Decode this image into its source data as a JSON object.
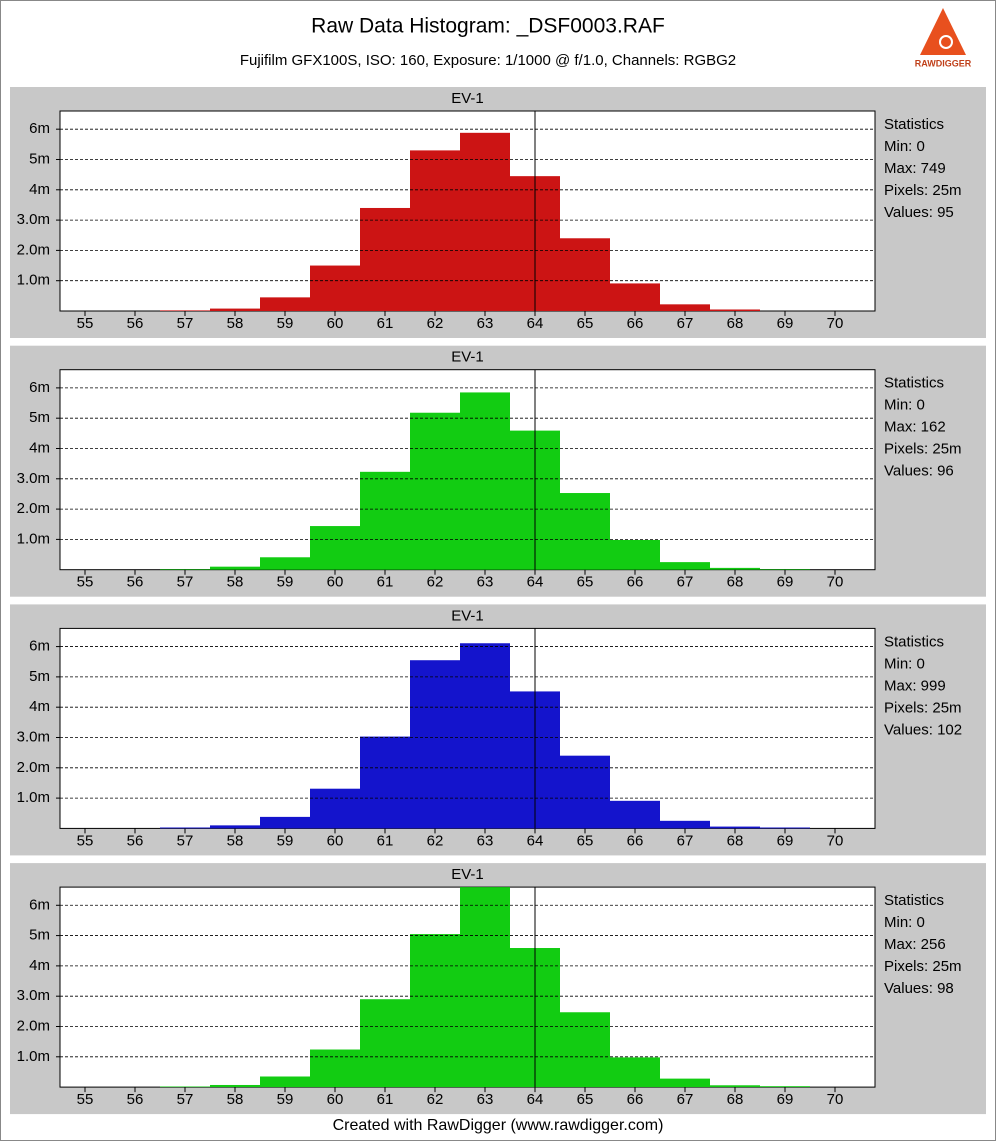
{
  "title": "Raw Data Histogram: _DSF0003.RAF",
  "subtitle": "Fujifilm GFX100S, ISO: 160, Exposure: 1/1000 @ f/1.0, Channels: RGBG2",
  "footer": "Created with RawDigger (www.rawdigger.com)",
  "logo_text": "RAWDIGGER",
  "chart_data": [
    {
      "type": "histogram",
      "title": "EV-1",
      "color": "#cc1414",
      "bins": [
        54.5,
        55.5,
        56.5,
        57.5,
        58.5,
        59.5,
        60.5,
        61.5,
        62.5,
        63.5,
        64.5,
        65.5,
        66.5,
        67.5,
        68.5,
        69.5,
        70.5
      ],
      "values": [
        0,
        0,
        20000,
        80000,
        450000,
        1500000,
        3400000,
        5300000,
        5880000,
        4450000,
        2400000,
        910000,
        220000,
        50000,
        0,
        0
      ],
      "xlim": [
        54.5,
        70.8
      ],
      "xticks": [
        55,
        56,
        57,
        58,
        59,
        60,
        61,
        62,
        63,
        64,
        65,
        66,
        67,
        68,
        69,
        70
      ],
      "ylim": [
        0,
        6600000
      ],
      "yticks": [
        {
          "value": 1000000,
          "label": "1.0m"
        },
        {
          "value": 2000000,
          "label": "2.0m"
        },
        {
          "value": 3000000,
          "label": "3.0m"
        },
        {
          "value": 4000000,
          "label": "4m"
        },
        {
          "value": 5000000,
          "label": "5m"
        },
        {
          "value": 6000000,
          "label": "6m"
        }
      ],
      "grid": true,
      "ref_x": 64,
      "stats": [
        "Statistics",
        "Min: 0",
        "Max: 749",
        "Pixels: 25m",
        "Values: 95"
      ]
    },
    {
      "type": "histogram",
      "title": "EV-1",
      "color": "#12cc12",
      "bins": [
        54.5,
        55.5,
        56.5,
        57.5,
        58.5,
        59.5,
        60.5,
        61.5,
        62.5,
        63.5,
        64.5,
        65.5,
        66.5,
        67.5,
        68.5,
        69.5,
        70.5
      ],
      "values": [
        0,
        0,
        20000,
        100000,
        410000,
        1440000,
        3230000,
        5180000,
        5850000,
        4590000,
        2530000,
        980000,
        250000,
        60000,
        20000,
        0
      ],
      "xlim": [
        54.5,
        70.8
      ],
      "xticks": [
        55,
        56,
        57,
        58,
        59,
        60,
        61,
        62,
        63,
        64,
        65,
        66,
        67,
        68,
        69,
        70
      ],
      "ylim": [
        0,
        6600000
      ],
      "yticks": [
        {
          "value": 1000000,
          "label": "1.0m"
        },
        {
          "value": 2000000,
          "label": "2.0m"
        },
        {
          "value": 3000000,
          "label": "3.0m"
        },
        {
          "value": 4000000,
          "label": "4m"
        },
        {
          "value": 5000000,
          "label": "5m"
        },
        {
          "value": 6000000,
          "label": "6m"
        }
      ],
      "grid": true,
      "ref_x": 64,
      "stats": [
        "Statistics",
        "Min: 0",
        "Max: 162",
        "Pixels: 25m",
        "Values: 96"
      ]
    },
    {
      "type": "histogram",
      "title": "EV-1",
      "color": "#1414cc",
      "bins": [
        54.5,
        55.5,
        56.5,
        57.5,
        58.5,
        59.5,
        60.5,
        61.5,
        62.5,
        63.5,
        64.5,
        65.5,
        66.5,
        67.5,
        68.5,
        69.5,
        70.5
      ],
      "values": [
        0,
        0,
        30000,
        100000,
        380000,
        1310000,
        3030000,
        5550000,
        6110000,
        4520000,
        2400000,
        910000,
        250000,
        60000,
        30000,
        0
      ],
      "xlim": [
        54.5,
        70.8
      ],
      "xticks": [
        55,
        56,
        57,
        58,
        59,
        60,
        61,
        62,
        63,
        64,
        65,
        66,
        67,
        68,
        69,
        70
      ],
      "ylim": [
        0,
        6600000
      ],
      "yticks": [
        {
          "value": 1000000,
          "label": "1.0m"
        },
        {
          "value": 2000000,
          "label": "2.0m"
        },
        {
          "value": 3000000,
          "label": "3.0m"
        },
        {
          "value": 4000000,
          "label": "4m"
        },
        {
          "value": 5000000,
          "label": "5m"
        },
        {
          "value": 6000000,
          "label": "6m"
        }
      ],
      "grid": true,
      "ref_x": 64,
      "stats": [
        "Statistics",
        "Min: 0",
        "Max: 999",
        "Pixels: 25m",
        "Values: 102"
      ]
    },
    {
      "type": "histogram",
      "title": "EV-1",
      "color": "#12cc12",
      "bins": [
        54.5,
        55.5,
        56.5,
        57.5,
        58.5,
        59.5,
        60.5,
        61.5,
        62.5,
        63.5,
        64.5,
        65.5,
        66.5,
        67.5,
        68.5,
        69.5,
        70.5
      ],
      "values": [
        0,
        0,
        20000,
        70000,
        350000,
        1240000,
        2900000,
        5050000,
        6600000,
        4590000,
        2470000,
        980000,
        280000,
        60000,
        30000,
        0
      ],
      "xlim": [
        54.5,
        70.8
      ],
      "xticks": [
        55,
        56,
        57,
        58,
        59,
        60,
        61,
        62,
        63,
        64,
        65,
        66,
        67,
        68,
        69,
        70
      ],
      "ylim": [
        0,
        6600000
      ],
      "yticks": [
        {
          "value": 1000000,
          "label": "1.0m"
        },
        {
          "value": 2000000,
          "label": "2.0m"
        },
        {
          "value": 3000000,
          "label": "3.0m"
        },
        {
          "value": 4000000,
          "label": "4m"
        },
        {
          "value": 5000000,
          "label": "5m"
        },
        {
          "value": 6000000,
          "label": "6m"
        }
      ],
      "grid": true,
      "ref_x": 64,
      "stats": [
        "Statistics",
        "Min: 0",
        "Max: 256",
        "Pixels: 25m",
        "Values: 98"
      ]
    }
  ]
}
